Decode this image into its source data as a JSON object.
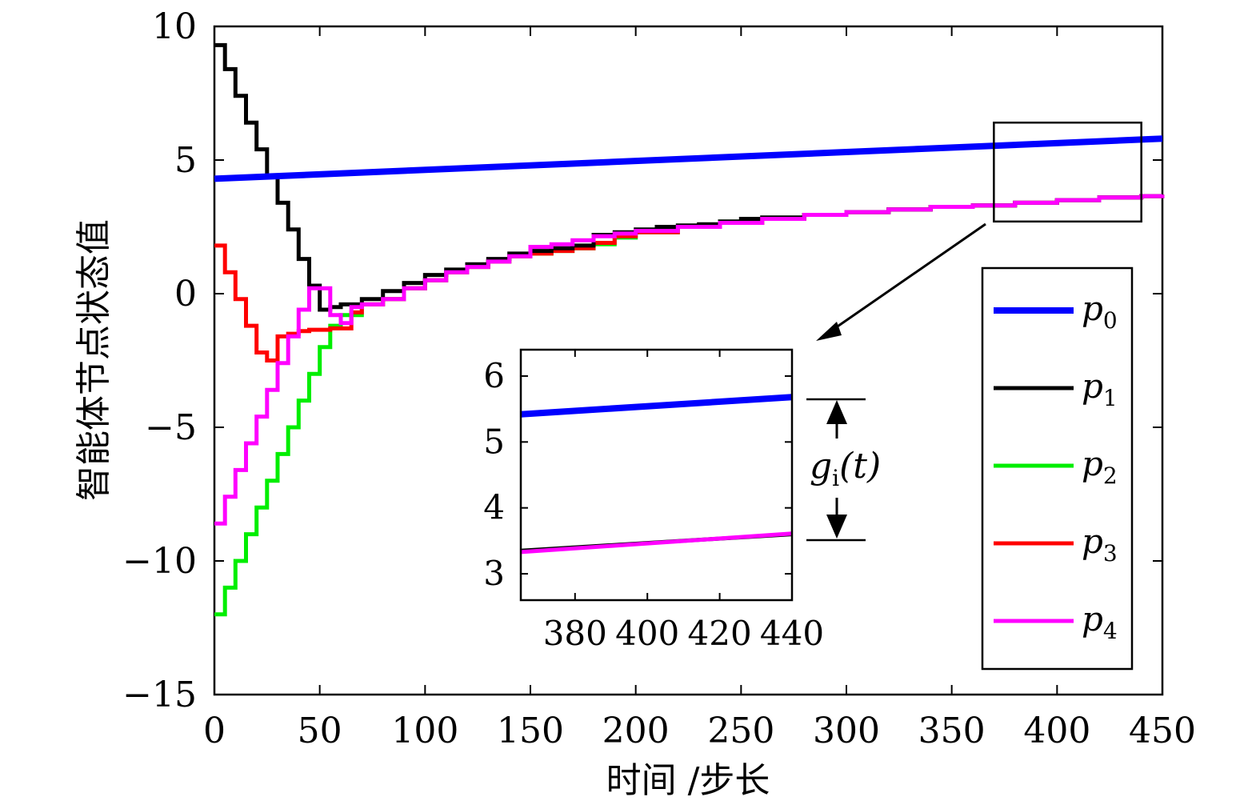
{
  "chart_data": [
    {
      "type": "line",
      "title": "",
      "xlabel": "时间 /步长",
      "ylabel": "智能体节点状态值",
      "xlim": [
        0,
        450
      ],
      "ylim": [
        -15,
        10
      ],
      "xticks": [
        0,
        50,
        100,
        150,
        200,
        250,
        300,
        350,
        400,
        450
      ],
      "yticks": [
        -15,
        -10,
        -5,
        0,
        5,
        10
      ],
      "xtick_labels": [
        "0",
        "50",
        "100",
        "150",
        "200",
        "250",
        "300",
        "350",
        "400",
        "450"
      ],
      "ytick_labels": [
        "−15",
        "−10",
        "−5",
        "0",
        "5",
        "10"
      ],
      "grid": false,
      "legend_position": "right",
      "series": [
        {
          "name": "p",
          "subscript": "0",
          "color": "#0000ff",
          "step": false,
          "points": [
            [
              0,
              4.3
            ],
            [
              450,
              5.8
            ]
          ]
        },
        {
          "name": "p",
          "subscript": "1",
          "color": "#000000",
          "step": true,
          "points": [
            [
              0,
              9.3
            ],
            [
              5,
              8.4
            ],
            [
              10,
              7.4
            ],
            [
              15,
              6.4
            ],
            [
              20,
              5.4
            ],
            [
              25,
              4.4
            ],
            [
              30,
              3.4
            ],
            [
              35,
              2.4
            ],
            [
              40,
              1.3
            ],
            [
              45,
              0.3
            ],
            [
              50,
              -0.6
            ],
            [
              55,
              -0.5
            ],
            [
              60,
              -0.4
            ],
            [
              70,
              -0.2
            ],
            [
              80,
              0.1
            ],
            [
              90,
              0.4
            ],
            [
              100,
              0.7
            ],
            [
              110,
              0.9
            ],
            [
              120,
              1.1
            ],
            [
              130,
              1.3
            ],
            [
              140,
              1.5
            ],
            [
              150,
              1.6
            ],
            [
              160,
              1.7
            ],
            [
              170,
              1.8
            ],
            [
              180,
              2.2
            ],
            [
              190,
              2.3
            ],
            [
              200,
              2.4
            ],
            [
              210,
              2.5
            ],
            [
              220,
              2.55
            ],
            [
              230,
              2.6
            ],
            [
              240,
              2.7
            ],
            [
              250,
              2.8
            ],
            [
              260,
              2.85
            ],
            [
              280,
              2.95
            ],
            [
              300,
              3.05
            ],
            [
              320,
              3.15
            ],
            [
              340,
              3.25
            ],
            [
              360,
              3.3
            ],
            [
              380,
              3.4
            ],
            [
              400,
              3.5
            ],
            [
              420,
              3.6
            ],
            [
              440,
              3.65
            ],
            [
              450,
              3.7
            ]
          ]
        },
        {
          "name": "p",
          "subscript": "2",
          "color": "#00ee00",
          "step": true,
          "points": [
            [
              0,
              -12
            ],
            [
              5,
              -11
            ],
            [
              10,
              -10
            ],
            [
              15,
              -9
            ],
            [
              20,
              -8
            ],
            [
              25,
              -7
            ],
            [
              30,
              -6
            ],
            [
              35,
              -5
            ],
            [
              40,
              -4
            ],
            [
              45,
              -3
            ],
            [
              50,
              -2
            ],
            [
              55,
              -1.2
            ],
            [
              60,
              -0.8
            ],
            [
              70,
              -0.4
            ],
            [
              80,
              -0.2
            ],
            [
              90,
              0.2
            ],
            [
              100,
              0.5
            ],
            [
              110,
              0.8
            ],
            [
              120,
              1.0
            ],
            [
              130,
              1.2
            ],
            [
              140,
              1.4
            ],
            [
              150,
              1.5
            ],
            [
              160,
              1.6
            ],
            [
              170,
              1.7
            ],
            [
              180,
              1.85
            ],
            [
              190,
              2.1
            ],
            [
              200,
              2.3
            ],
            [
              220,
              2.5
            ],
            [
              240,
              2.65
            ],
            [
              260,
              2.8
            ],
            [
              280,
              2.95
            ],
            [
              300,
              3.05
            ],
            [
              320,
              3.15
            ],
            [
              340,
              3.25
            ],
            [
              360,
              3.3
            ],
            [
              380,
              3.4
            ],
            [
              400,
              3.5
            ],
            [
              420,
              3.6
            ],
            [
              440,
              3.65
            ],
            [
              450,
              3.7
            ]
          ]
        },
        {
          "name": "p",
          "subscript": "3",
          "color": "#ff0000",
          "step": true,
          "points": [
            [
              0,
              1.8
            ],
            [
              5,
              0.8
            ],
            [
              10,
              -0.2
            ],
            [
              15,
              -1.2
            ],
            [
              20,
              -2.2
            ],
            [
              25,
              -2.5
            ],
            [
              30,
              -1.6
            ],
            [
              35,
              -1.5
            ],
            [
              40,
              -1.4
            ],
            [
              45,
              -1.35
            ],
            [
              50,
              -1.35
            ],
            [
              55,
              -1.3
            ],
            [
              60,
              -1.3
            ],
            [
              65,
              -0.7
            ],
            [
              70,
              -0.4
            ],
            [
              80,
              -0.2
            ],
            [
              90,
              0.2
            ],
            [
              100,
              0.5
            ],
            [
              110,
              0.8
            ],
            [
              120,
              1.0
            ],
            [
              130,
              1.2
            ],
            [
              140,
              1.4
            ],
            [
              150,
              1.5
            ],
            [
              160,
              1.6
            ],
            [
              170,
              1.7
            ],
            [
              180,
              1.9
            ],
            [
              190,
              2.15
            ],
            [
              200,
              2.3
            ],
            [
              220,
              2.5
            ],
            [
              240,
              2.65
            ],
            [
              260,
              2.8
            ],
            [
              280,
              2.95
            ],
            [
              300,
              3.05
            ],
            [
              320,
              3.15
            ],
            [
              340,
              3.25
            ],
            [
              360,
              3.3
            ],
            [
              380,
              3.4
            ],
            [
              400,
              3.5
            ],
            [
              420,
              3.6
            ],
            [
              440,
              3.65
            ],
            [
              450,
              3.7
            ]
          ]
        },
        {
          "name": "p",
          "subscript": "4",
          "color": "#ff00ff",
          "step": true,
          "points": [
            [
              0,
              -8.6
            ],
            [
              5,
              -7.6
            ],
            [
              10,
              -6.6
            ],
            [
              15,
              -5.6
            ],
            [
              20,
              -4.6
            ],
            [
              25,
              -3.6
            ],
            [
              30,
              -2.6
            ],
            [
              35,
              -1.6
            ],
            [
              40,
              -0.6
            ],
            [
              45,
              0.2
            ],
            [
              50,
              0.2
            ],
            [
              55,
              -0.8
            ],
            [
              60,
              -1.1
            ],
            [
              65,
              -0.5
            ],
            [
              70,
              -0.4
            ],
            [
              80,
              -0.2
            ],
            [
              90,
              0.2
            ],
            [
              100,
              0.5
            ],
            [
              110,
              0.8
            ],
            [
              120,
              1.0
            ],
            [
              130,
              1.2
            ],
            [
              140,
              1.4
            ],
            [
              150,
              1.75
            ],
            [
              160,
              1.85
            ],
            [
              170,
              2.0
            ],
            [
              180,
              2.15
            ],
            [
              190,
              2.25
            ],
            [
              200,
              2.35
            ],
            [
              220,
              2.5
            ],
            [
              240,
              2.65
            ],
            [
              260,
              2.8
            ],
            [
              280,
              2.95
            ],
            [
              300,
              3.05
            ],
            [
              320,
              3.15
            ],
            [
              340,
              3.25
            ],
            [
              360,
              3.3
            ],
            [
              380,
              3.4
            ],
            [
              400,
              3.5
            ],
            [
              420,
              3.6
            ],
            [
              440,
              3.65
            ],
            [
              450,
              3.7
            ]
          ]
        }
      ],
      "zoom_box": {
        "x": [
          370,
          440
        ],
        "y": [
          2.7,
          6.4
        ]
      }
    },
    {
      "type": "line",
      "title": "",
      "xlabel": "",
      "ylabel": "",
      "xlim": [
        365,
        440
      ],
      "ylim": [
        2.6,
        6.4
      ],
      "xticks": [
        380,
        400,
        420,
        440
      ],
      "yticks": [
        3,
        4,
        5,
        6
      ],
      "xtick_labels": [
        "380",
        "400",
        "420",
        "440"
      ],
      "ytick_labels": [
        "3",
        "4",
        "5",
        "6"
      ],
      "grid": false,
      "series": [
        {
          "name": "p",
          "subscript": "0",
          "color": "#0000ff",
          "points": [
            [
              365,
              5.42
            ],
            [
              440,
              5.68
            ]
          ]
        },
        {
          "name": "p",
          "subscript": "1",
          "color": "#000000",
          "points": [
            [
              365,
              3.35
            ],
            [
              440,
              3.6
            ]
          ]
        },
        {
          "name": "p",
          "subscript": "4",
          "color": "#ff00ff",
          "points": [
            [
              365,
              3.33
            ],
            [
              440,
              3.61
            ]
          ]
        }
      ],
      "annotation": {
        "label_main": "g",
        "label_sub": "i",
        "label_rest": "(t)"
      }
    }
  ]
}
